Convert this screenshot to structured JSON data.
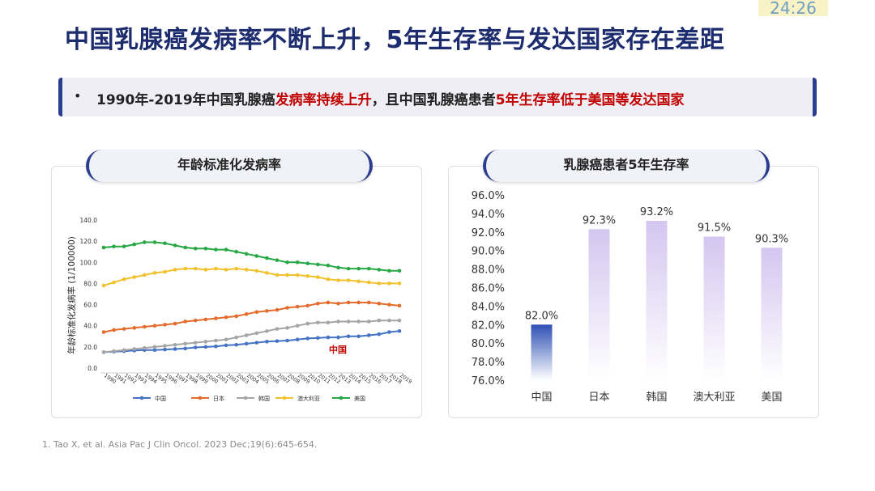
{
  "timer": "24:26",
  "title": "中国乳腺癌发病率不断上升，5年生存率与发达国家存在差距",
  "banner": {
    "bullet": "•",
    "seg1": "1990年-2019年中国乳腺癌",
    "seg2": "发病率持续上升",
    "seg3": "，且中国乳腺癌患者",
    "seg4": "5年生存率低于美国等发达国家"
  },
  "left_panel": {
    "heading": "年龄标准化发病率"
  },
  "right_panel": {
    "heading": "乳腺癌患者5年生存率"
  },
  "footnote": "1. Tao X, et al. Asia Pac J Clin Oncol. 2023 Dec;19(6):645-654.",
  "colors": {
    "china": "#4472c4",
    "japan": "#e36c2d",
    "korea": "#a5a5a5",
    "australia": "#f2c12e",
    "usa": "#27a844",
    "annotation": "#c00000",
    "bar_top_china": "#2f4fb5",
    "bar_top_other": "#d4c6f0"
  },
  "chart_data": [
    {
      "type": "line",
      "title": "年龄标准化发病率",
      "xlabel": "",
      "ylabel": "年龄标准化发病率 (1/100000)",
      "ylim": [
        0,
        140
      ],
      "yticks": [
        "0.0",
        "20.0",
        "40.0",
        "60.0",
        "80.0",
        "100.0",
        "120.0",
        "140.0"
      ],
      "grid": false,
      "legend": "bottom",
      "annotation": "中国",
      "x": [
        "1990",
        "1991",
        "1992",
        "1993",
        "1994",
        "1995",
        "1996",
        "1997",
        "1998",
        "1999",
        "2000",
        "2001",
        "2002",
        "2003",
        "2004",
        "2005",
        "2006",
        "2007",
        "2008",
        "2009",
        "2010",
        "2011",
        "2012",
        "2013",
        "2014",
        "2015",
        "2016",
        "2017",
        "2018",
        "2019"
      ],
      "series": [
        {
          "name": "中国",
          "key": "china",
          "values": [
            15,
            15.5,
            16,
            16.5,
            17,
            17,
            17.5,
            18,
            18.5,
            19.5,
            20,
            20.5,
            21.5,
            22,
            23,
            24,
            25,
            25.5,
            26,
            27,
            28,
            28.5,
            29,
            29,
            30,
            30,
            31,
            32,
            34,
            35
          ]
        },
        {
          "name": "日本",
          "key": "japan",
          "values": [
            34,
            36,
            37,
            38,
            39,
            40,
            41,
            42,
            44,
            45,
            46,
            47,
            48,
            49,
            51,
            53,
            54,
            55,
            57,
            58,
            59,
            61,
            62,
            61,
            62,
            62,
            62,
            61,
            60,
            59
          ]
        },
        {
          "name": "韩国",
          "key": "korea",
          "values": [
            15,
            16,
            17,
            18,
            19,
            20,
            21,
            22,
            23,
            24,
            25,
            26,
            27,
            29,
            31,
            33,
            35,
            37,
            38,
            40,
            42,
            43,
            43,
            44,
            44,
            44,
            44,
            45,
            45,
            45
          ]
        },
        {
          "name": "澳大利亚",
          "key": "australia",
          "values": [
            78,
            81,
            84,
            86,
            88,
            90,
            91,
            93,
            94,
            94,
            93,
            94,
            93,
            94,
            93,
            92,
            90,
            88,
            88,
            88,
            87,
            86,
            84,
            83,
            83,
            82,
            81,
            80,
            80,
            80
          ]
        },
        {
          "name": "美国",
          "key": "usa",
          "values": [
            114,
            115,
            115,
            117,
            119,
            119,
            118,
            116,
            114,
            113,
            113,
            112,
            112,
            110,
            108,
            106,
            104,
            102,
            100,
            100,
            99,
            98,
            97,
            95,
            94,
            94,
            94,
            93,
            92,
            92
          ]
        }
      ]
    },
    {
      "type": "bar",
      "title": "乳腺癌患者5年生存率",
      "xlabel": "",
      "ylabel": "",
      "ylim": [
        76,
        96
      ],
      "yticks": [
        "76.0%",
        "78.0%",
        "80.0%",
        "82.0%",
        "84.0%",
        "86.0%",
        "88.0%",
        "90.0%",
        "92.0%",
        "94.0%",
        "96.0%"
      ],
      "grid": false,
      "categories": [
        "中国",
        "日本",
        "韩国",
        "澳大利亚",
        "美国"
      ],
      "values": [
        82.0,
        92.3,
        93.2,
        91.5,
        90.3
      ],
      "labels": [
        "82.0%",
        "92.3%",
        "93.2%",
        "91.5%",
        "90.3%"
      ]
    }
  ]
}
